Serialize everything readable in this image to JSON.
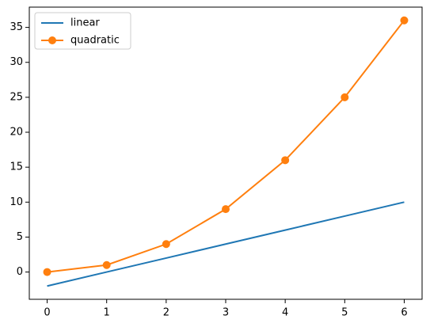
{
  "chart_data": {
    "type": "line",
    "x": [
      0,
      1,
      2,
      3,
      4,
      5,
      6
    ],
    "series": [
      {
        "name": "linear",
        "color": "#1f77b4",
        "values": [
          -2,
          0,
          2,
          4,
          6,
          8,
          10
        ]
      },
      {
        "name": "quadratic",
        "color": "#ff7f0e",
        "marker": "o",
        "values": [
          0,
          1,
          4,
          9,
          16,
          25,
          36
        ]
      }
    ],
    "xlim": [
      -0.3,
      6.3
    ],
    "xticks": [
      0,
      1,
      2,
      3,
      4,
      5,
      6
    ],
    "ylim": [
      -3.9,
      37.9
    ],
    "yticks": [
      0,
      5,
      10,
      15,
      20,
      25,
      30,
      35
    ],
    "grid": false,
    "legend": "upper left"
  }
}
